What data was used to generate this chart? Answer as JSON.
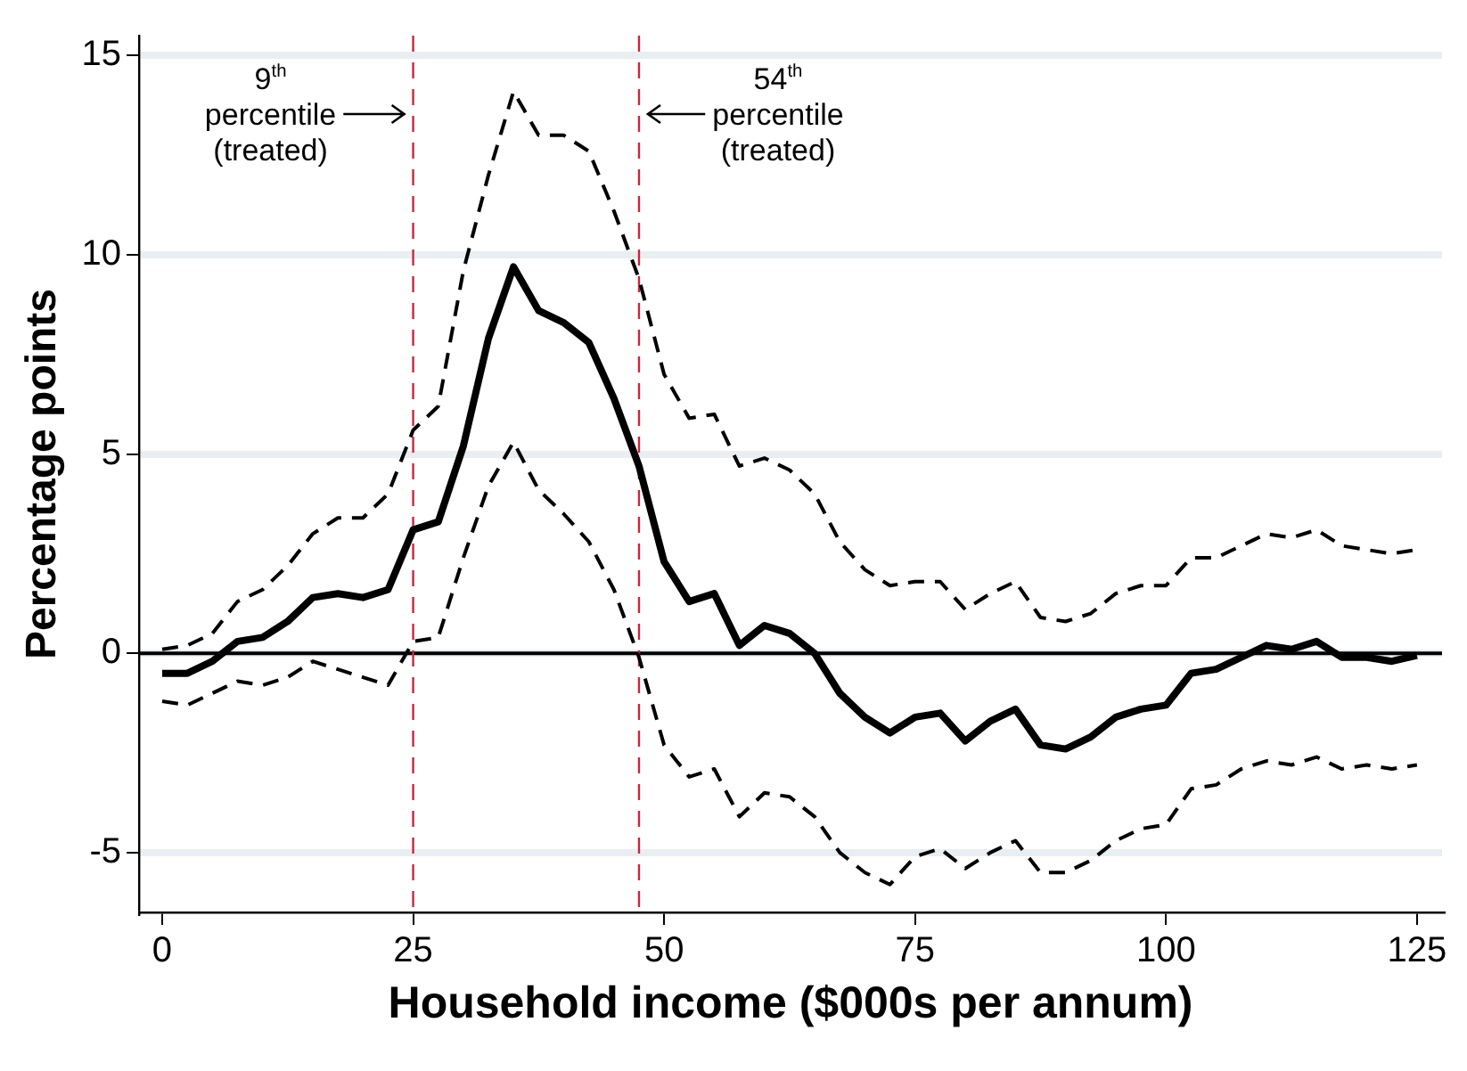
{
  "chart_data": {
    "type": "line",
    "xlabel": "Household income ($000s per annum)",
    "ylabel": "Percentage points",
    "x": [
      0,
      2.5,
      5,
      7.5,
      10,
      12.5,
      15,
      17.5,
      20,
      22.5,
      25,
      27.5,
      30,
      32.5,
      35,
      37.5,
      40,
      42.5,
      45,
      47.5,
      50,
      52.5,
      55,
      57.5,
      60,
      62.5,
      65,
      67.5,
      70,
      72.5,
      75,
      77.5,
      80,
      82.5,
      85,
      87.5,
      90,
      92.5,
      95,
      97.5,
      100,
      102.5,
      105,
      107.5,
      110,
      112.5,
      115,
      117.5,
      120,
      122.5,
      125
    ],
    "series": [
      {
        "color": "#000000",
        "line_style": "solid",
        "values": [
          -0.5,
          -0.5,
          -0.2,
          0.3,
          0.4,
          0.8,
          1.4,
          1.5,
          1.4,
          1.6,
          3.1,
          3.3,
          5.2,
          7.9,
          9.7,
          8.6,
          8.3,
          7.8,
          6.4,
          4.7,
          2.3,
          1.3,
          1.5,
          0.2,
          0.7,
          0.5,
          0,
          -1.0,
          -1.6,
          -2.0,
          -1.6,
          -1.5,
          -2.2,
          -1.7,
          -1.4,
          -2.3,
          -2.4,
          -2.1,
          -1.6,
          -1.4,
          -1.3,
          -0.5,
          -0.4,
          -0.1,
          0.2,
          0.1,
          0.3,
          -0.1,
          -0.1,
          -0.2,
          -0.05
        ]
      },
      {
        "color": "#000000",
        "line_style": "dashed",
        "values": [
          0.1,
          0.2,
          0.5,
          1.3,
          1.6,
          2.2,
          3.0,
          3.4,
          3.4,
          4.0,
          5.6,
          6.2,
          9.6,
          12.0,
          14.1,
          13.0,
          13.0,
          12.6,
          11.1,
          9.4,
          7.0,
          5.9,
          6.0,
          4.7,
          4.9,
          4.6,
          4.0,
          2.8,
          2.1,
          1.7,
          1.8,
          1.8,
          1.1,
          1.5,
          1.8,
          0.9,
          0.8,
          1.0,
          1.5,
          1.7,
          1.7,
          2.4,
          2.4,
          2.7,
          3.0,
          2.9,
          3.1,
          2.7,
          2.6,
          2.5,
          2.6
        ]
      },
      {
        "color": "#000000",
        "line_style": "dashed",
        "values": [
          -1.2,
          -1.3,
          -1.0,
          -0.7,
          -0.8,
          -0.6,
          -0.2,
          -0.4,
          -0.6,
          -0.8,
          0.3,
          0.4,
          2.4,
          4.2,
          5.3,
          4.1,
          3.5,
          2.8,
          1.6,
          -0.1,
          -2.3,
          -3.1,
          -2.9,
          -4.1,
          -3.5,
          -3.6,
          -4.1,
          -5.0,
          -5.5,
          -5.8,
          -5.1,
          -4.9,
          -5.4,
          -5.0,
          -4.7,
          -5.5,
          -5.5,
          -5.2,
          -4.7,
          -4.4,
          -4.3,
          -3.4,
          -3.3,
          -2.9,
          -2.7,
          -2.8,
          -2.6,
          -2.9,
          -2.8,
          -2.9,
          -2.8
        ]
      }
    ],
    "xlim": [
      -2.3,
      127.5
    ],
    "xticks": [
      0,
      25,
      50,
      75,
      100,
      125
    ],
    "ylim": [
      -6.5,
      15.5
    ],
    "yticks": [
      -5,
      0,
      5,
      10,
      15
    ],
    "grid": "y",
    "legend": false,
    "marker": "none",
    "ref_lines": [
      {
        "axis": "y",
        "value": 0,
        "color": "#000000",
        "line_style": "solid"
      },
      {
        "axis": "x",
        "value": 25,
        "color": "#c8283c",
        "line_style": "dashed",
        "label": "9$^{th}$\npercentile\n(treated)"
      },
      {
        "axis": "x",
        "value": 47.5,
        "color": "#c8283c",
        "line_style": "dashed",
        "label": "54$^{th}$\npercentile\n(treated)"
      }
    ]
  }
}
